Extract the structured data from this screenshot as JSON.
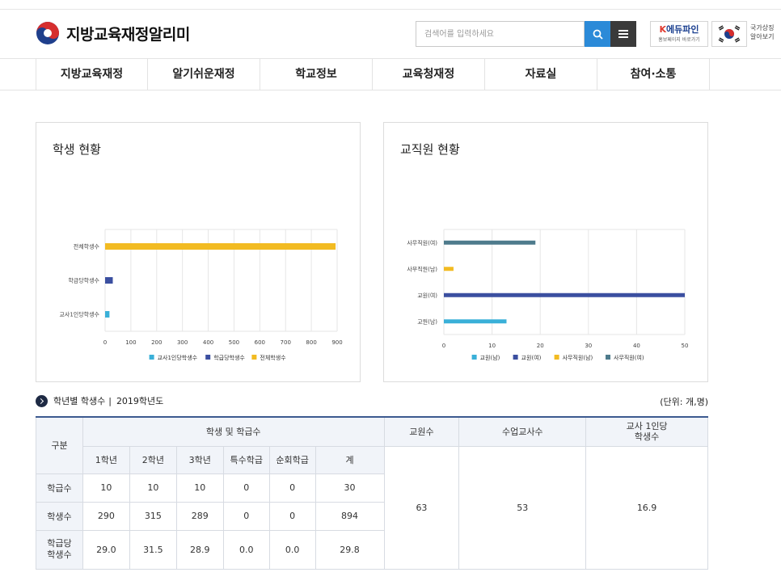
{
  "header": {
    "site_title": "지방교육재정알리미",
    "search_placeholder": "검색어를 입력하세요",
    "edufine_title_k": "K",
    "edufine_title": "에듀파인",
    "edufine_sub": "홍보페이지 바로가기",
    "nat_text_1": "국가상징",
    "nat_text_2": "알아보기"
  },
  "nav": {
    "items": [
      "지방교육재정",
      "알기쉬운재정",
      "학교정보",
      "교육청재정",
      "자료실",
      "참여·소통"
    ]
  },
  "colors": {
    "primary_blue": "#2b8ad8",
    "series_teacher_ratio": "#3ab0d8",
    "series_class_ratio": "#3b4fa0",
    "series_total": "#f2bb22",
    "series_admin_female": "#4e7b8c",
    "table_top": "#3c5a8f"
  },
  "chart_data": [
    {
      "type": "bar",
      "orientation": "horizontal",
      "title": "학생 현황",
      "categories": [
        "교사1인당학생수",
        "학급당학생수",
        "전체학생수"
      ],
      "series": [
        {
          "name": "교사1인당학생수",
          "values": [
            16.9,
            null,
            null
          ]
        },
        {
          "name": "학급당학생수",
          "values": [
            null,
            29.8,
            null
          ]
        },
        {
          "name": "전체학생수",
          "values": [
            null,
            null,
            894
          ]
        }
      ],
      "xlim": [
        0,
        900
      ],
      "xticks": [
        0,
        100,
        200,
        300,
        400,
        500,
        600,
        700,
        800,
        900
      ],
      "grid": true,
      "legend_position": "bottom"
    },
    {
      "type": "bar",
      "orientation": "horizontal",
      "title": "교직원 현황",
      "categories": [
        "교원(남)",
        "교원(여)",
        "사무직원(남)",
        "사무직원(여)"
      ],
      "series": [
        {
          "name": "교원(남)",
          "values": [
            13,
            null,
            null,
            null
          ]
        },
        {
          "name": "교원(여)",
          "values": [
            null,
            50,
            null,
            null
          ]
        },
        {
          "name": "사무직원(남)",
          "values": [
            null,
            null,
            2,
            null
          ]
        },
        {
          "name": "사무직원(여)",
          "values": [
            null,
            null,
            null,
            19
          ]
        }
      ],
      "xlim": [
        0,
        50
      ],
      "xticks": [
        0,
        10,
        20,
        30,
        40,
        50
      ],
      "grid": true,
      "legend_position": "bottom"
    }
  ],
  "section": {
    "title": "학년별 학생수",
    "separator": "|",
    "year": "2019학년도",
    "unit": "(단위: 개,명)"
  },
  "table": {
    "head_gubun": "구분",
    "head_group": "학생 및 학급수",
    "head_teachers": "교원수",
    "head_class_teachers": "수업교사수",
    "head_per_teacher": "교사 1인당\n학생수",
    "sub_heads": [
      "1학년",
      "2학년",
      "3학년",
      "특수학급",
      "순회학급",
      "계"
    ],
    "rows": [
      {
        "label": "학급수",
        "cells": [
          "10",
          "10",
          "10",
          "0",
          "0",
          "30"
        ]
      },
      {
        "label": "학생수",
        "cells": [
          "290",
          "315",
          "289",
          "0",
          "0",
          "894"
        ]
      },
      {
        "label": "학급당\n학생수",
        "cells": [
          "29.0",
          "31.5",
          "28.9",
          "0.0",
          "0.0",
          "29.8"
        ]
      }
    ],
    "teachers": "63",
    "class_teachers": "53",
    "per_teacher": "16.9"
  }
}
